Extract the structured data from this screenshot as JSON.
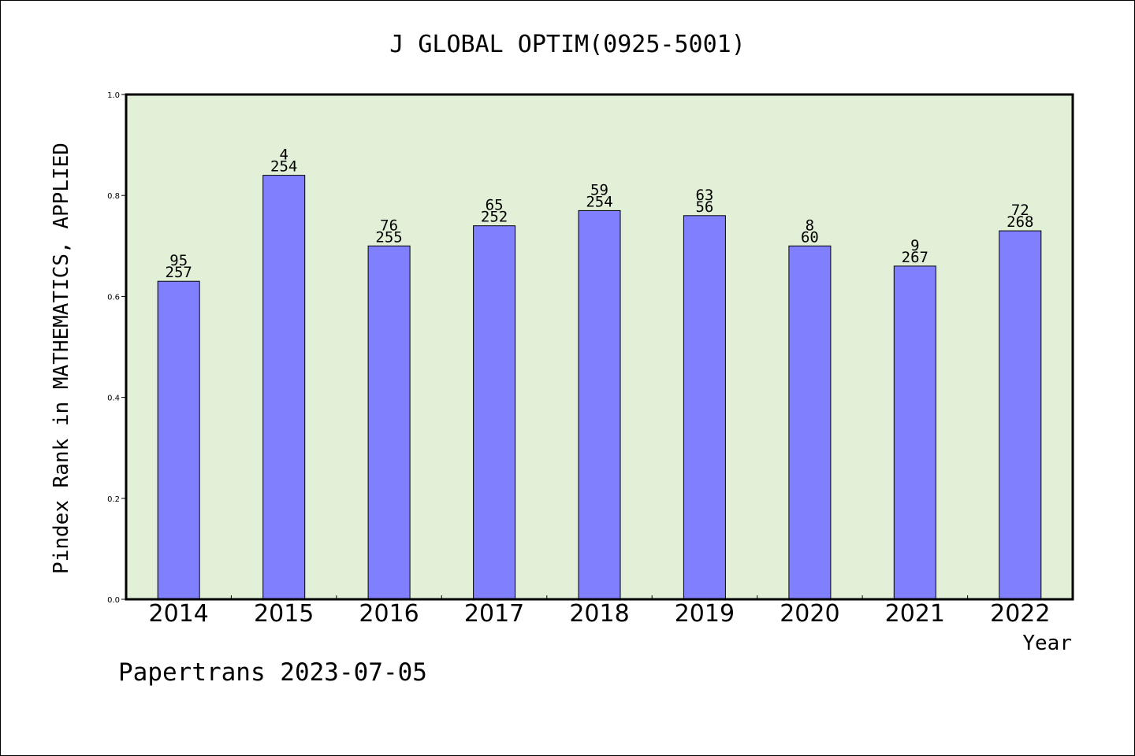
{
  "chart_data": {
    "type": "bar",
    "title": "J GLOBAL OPTIM(0925-5001)",
    "xlabel": "Year",
    "ylabel": "Pindex Rank in MATHEMATICS, APPLIED",
    "footer": "Papertrans 2023-07-05",
    "categories": [
      "2014",
      "2015",
      "2016",
      "2017",
      "2018",
      "2019",
      "2020",
      "2021",
      "2022"
    ],
    "values": [
      0.63,
      0.84,
      0.7,
      0.74,
      0.77,
      0.76,
      0.7,
      0.66,
      0.73
    ],
    "rank_labels": [
      "95",
      "4",
      "76",
      "65",
      "59",
      "63",
      "8",
      "9",
      "72"
    ],
    "total_labels": [
      "257",
      "254",
      "255",
      "252",
      "254",
      "56",
      "60",
      "267",
      "268"
    ],
    "ylim": [
      0.0,
      1.0
    ],
    "yticks": [
      "0.0",
      "0.2",
      "0.4",
      "0.6",
      "0.8",
      "1.0"
    ],
    "grid": false,
    "colors": {
      "plot_background": "#e2f0d7",
      "bar_fill": "#8080ff",
      "bar_stroke": "#000000",
      "axis": "#000000"
    }
  }
}
